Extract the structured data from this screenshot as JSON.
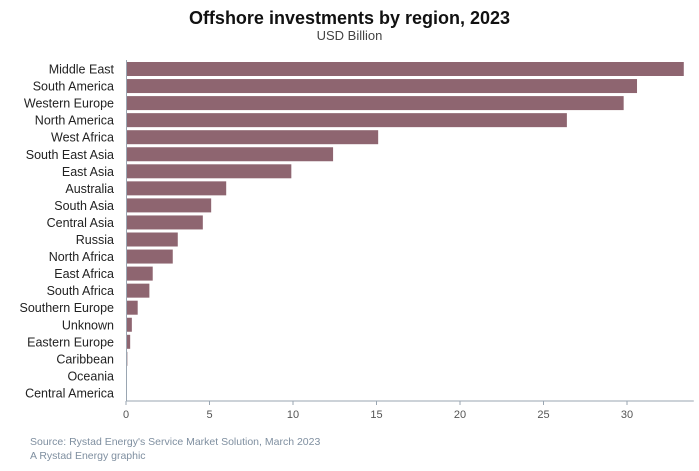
{
  "chart_data": {
    "type": "bar",
    "orientation": "horizontal",
    "title": "Offshore investments by region, 2023",
    "subtitle": "USD Billion",
    "categories": [
      "Middle East",
      "South America",
      "Western Europe",
      "North America",
      "West Africa",
      "South East Asia",
      "East Asia",
      "Australia",
      "South Asia",
      "Central Asia",
      "Russia",
      "North Africa",
      "East Africa",
      "South Africa",
      "Southern Europe",
      "Unknown",
      "Eastern Europe",
      "Caribbean",
      "Oceania",
      "Central America"
    ],
    "values": [
      33.4,
      30.6,
      29.8,
      26.4,
      15.1,
      12.4,
      9.9,
      6.0,
      5.1,
      4.6,
      3.1,
      2.8,
      1.6,
      1.4,
      0.7,
      0.35,
      0.25,
      0.08,
      0.05,
      0.03
    ],
    "xlim": [
      0,
      34
    ],
    "xticks": [
      0,
      5,
      10,
      15,
      20,
      25,
      30
    ],
    "bar_color": "#8e6570",
    "axis_color": "#9aa6b2",
    "grid": false
  },
  "footer": {
    "source": "Source: Rystad Energy's Service Market Solution, March 2023",
    "credit": "A Rystad Energy graphic"
  }
}
